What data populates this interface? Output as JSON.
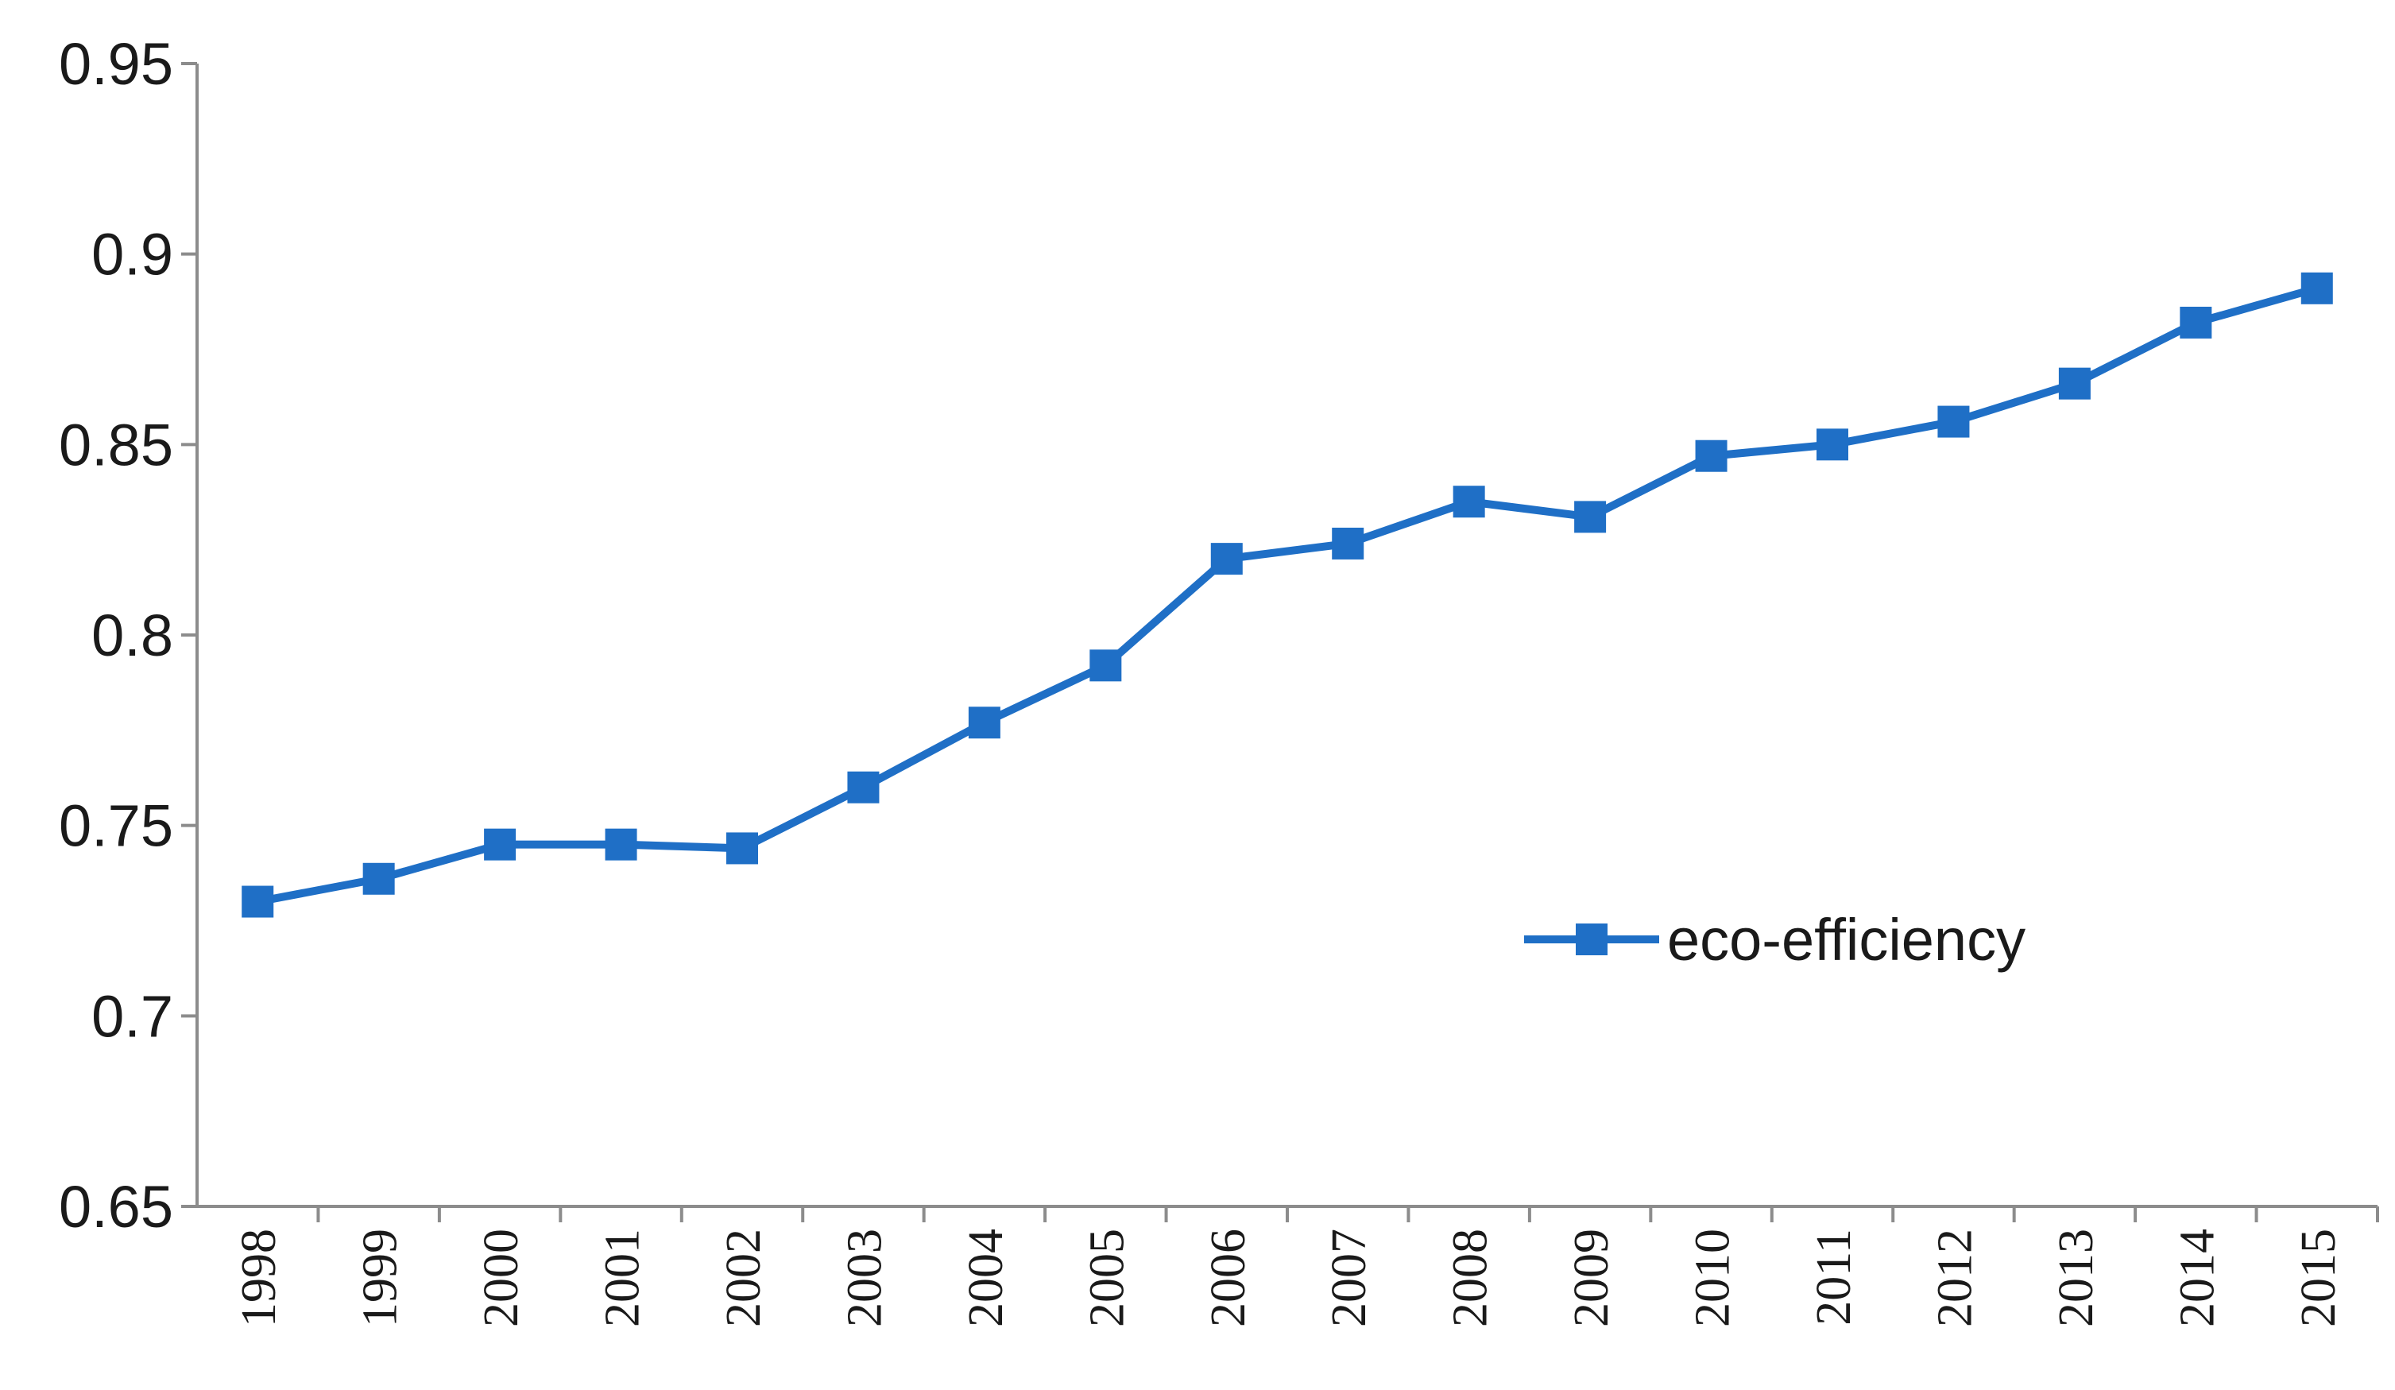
{
  "chart_data": {
    "type": "line",
    "title": "",
    "xlabel": "",
    "ylabel": "",
    "categories": [
      "1998",
      "1999",
      "2000",
      "2001",
      "2002",
      "2003",
      "2004",
      "2005",
      "2006",
      "2007",
      "2008",
      "2009",
      "2010",
      "2011",
      "2012",
      "2013",
      "2014",
      "2015"
    ],
    "ylim": [
      0.65,
      0.95
    ],
    "yticks": [
      0.65,
      0.7,
      0.75,
      0.8,
      0.85,
      0.9,
      0.95
    ],
    "ytick_labels": [
      "0.65",
      "0.7",
      "0.75",
      "0.8",
      "0.85",
      "0.9",
      "0.95"
    ],
    "grid": false,
    "legend_position": "center-right",
    "series": [
      {
        "name": "eco-efficiency",
        "color": "#1f6fc6",
        "marker": "square",
        "values": [
          0.73,
          0.736,
          0.745,
          0.745,
          0.744,
          0.76,
          0.777,
          0.792,
          0.82,
          0.824,
          0.835,
          0.831,
          0.847,
          0.85,
          0.856,
          0.866,
          0.882,
          0.891
        ]
      }
    ]
  }
}
